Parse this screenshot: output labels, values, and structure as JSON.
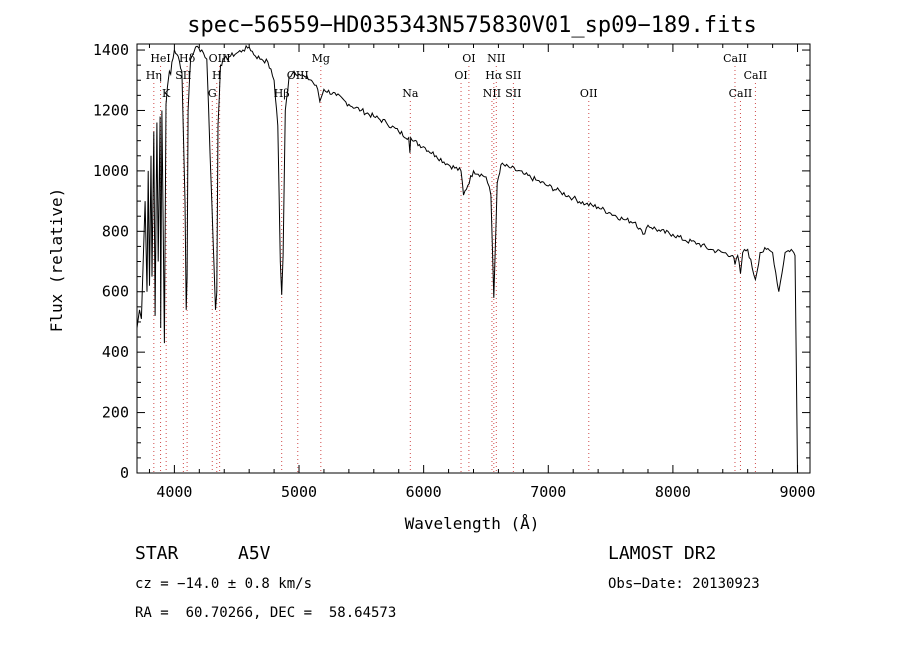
{
  "chart_data": {
    "type": "line",
    "title": "spec−56559−HD035343N575830V01_sp09−189.fits",
    "xlabel": "Wavelength (Å)",
    "ylabel": "Flux (relative)",
    "xlim": [
      3700,
      9100
    ],
    "ylim": [
      0,
      1420
    ],
    "xticks": [
      4000,
      5000,
      6000,
      7000,
      8000,
      9000
    ],
    "yticks": [
      0,
      200,
      400,
      600,
      800,
      1000,
      1200,
      1400
    ],
    "grid": false,
    "series": [
      {
        "x": [
          3700,
          3720,
          3735,
          3750,
          3765,
          3780,
          3790,
          3800,
          3812,
          3820,
          3835,
          3845,
          3860,
          3870,
          3885,
          3890,
          3900,
          3920,
          3933,
          3945,
          3960,
          3970,
          3980,
          4000,
          4030,
          4060,
          4085,
          4095,
          4102,
          4110,
          4130,
          4170,
          4220,
          4260,
          4300,
          4330,
          4340,
          4350,
          4370,
          4400,
          4450,
          4500,
          4550,
          4600,
          4650,
          4700,
          4750,
          4800,
          4830,
          4850,
          4861,
          4872,
          4890,
          4920,
          4960,
          5000,
          5050,
          5100,
          5150,
          5167,
          5200,
          5300,
          5400,
          5500,
          5600,
          5700,
          5800,
          5880,
          5890,
          5896,
          5910,
          6000,
          6100,
          6200,
          6300,
          6320,
          6400,
          6500,
          6540,
          6555,
          6563,
          6572,
          6590,
          6620,
          6700,
          6800,
          6900,
          7000,
          7100,
          7200,
          7300,
          7400,
          7500,
          7600,
          7700,
          7760,
          7800,
          7900,
          8000,
          8100,
          8200,
          8300,
          8400,
          8480,
          8498,
          8520,
          8542,
          8560,
          8600,
          8662,
          8700,
          8750,
          8800,
          8850,
          8900,
          8950,
          8980,
          9000
        ],
        "y": [
          480,
          540,
          510,
          700,
          900,
          600,
          1000,
          620,
          1050,
          650,
          1130,
          520,
          1160,
          700,
          1180,
          480,
          1200,
          430,
          1220,
          1280,
          1330,
          1320,
          1360,
          1400,
          1380,
          1330,
          900,
          540,
          650,
          1200,
          1370,
          1410,
          1400,
          1370,
          900,
          540,
          600,
          1150,
          1350,
          1370,
          1380,
          1390,
          1400,
          1410,
          1380,
          1370,
          1360,
          1300,
          1150,
          700,
          590,
          720,
          1200,
          1310,
          1330,
          1320,
          1310,
          1300,
          1270,
          1230,
          1270,
          1250,
          1220,
          1200,
          1180,
          1160,
          1130,
          1110,
          1060,
          1110,
          1100,
          1080,
          1050,
          1020,
          1000,
          920,
          1000,
          980,
          920,
          700,
          580,
          700,
          960,
          1020,
          1010,
          990,
          970,
          950,
          930,
          910,
          890,
          880,
          860,
          840,
          830,
          790,
          820,
          800,
          790,
          770,
          760,
          740,
          730,
          720,
          690,
          720,
          660,
          730,
          740,
          640,
          730,
          740,
          730,
          600,
          730,
          740,
          720,
          0
        ]
      }
    ],
    "annotations": [
      {
        "label": "HeΙ",
        "x": 3889,
        "row": 1
      },
      {
        "label": "Hη",
        "x": 3835,
        "row": 2
      },
      {
        "label": "K",
        "x": 3934,
        "row": 3
      },
      {
        "label": "Hδ",
        "x": 4102,
        "row": 1
      },
      {
        "label": "SII",
        "x": 4072,
        "row": 2
      },
      {
        "label": "OIII",
        "x": 4363,
        "row": 1
      },
      {
        "label": "H",
        "x": 4340,
        "row": 2
      },
      {
        "label": "G",
        "x": 4304,
        "row": 3
      },
      {
        "label": "Hβ",
        "x": 4861,
        "row": 3
      },
      {
        "label": "OIII",
        "x": 4990,
        "row": 2
      },
      {
        "label": "Mg",
        "x": 5175,
        "row": 1
      },
      {
        "label": "Na",
        "x": 5893,
        "row": 3
      },
      {
        "label": "OI",
        "x": 6363,
        "row": 1
      },
      {
        "label": "OI",
        "x": 6300,
        "row": 2
      },
      {
        "label": "NII",
        "x": 6583,
        "row": 1
      },
      {
        "label": "Hα",
        "x": 6563,
        "row": 2
      },
      {
        "label": "SII",
        "x": 6720,
        "row": 2
      },
      {
        "label": "NII",
        "x": 6548,
        "row": 3
      },
      {
        "label": "SII",
        "x": 6720,
        "row": 3
      },
      {
        "label": "OII",
        "x": 7325,
        "row": 3
      },
      {
        "label": "CaII",
        "x": 8498,
        "row": 1
      },
      {
        "label": "CaII",
        "x": 8662,
        "row": 2
      },
      {
        "label": "CaII",
        "x": 8542,
        "row": 3
      }
    ]
  },
  "info": {
    "object_type": "STAR",
    "spectral_class": "A5V",
    "redshift": "cz = −14.0 ± 0.8 km/s",
    "coords": "RA =  60.70266, DEC =  58.64573",
    "survey": "LAMOST DR2",
    "obs_date": "Obs−Date: 20130923"
  }
}
